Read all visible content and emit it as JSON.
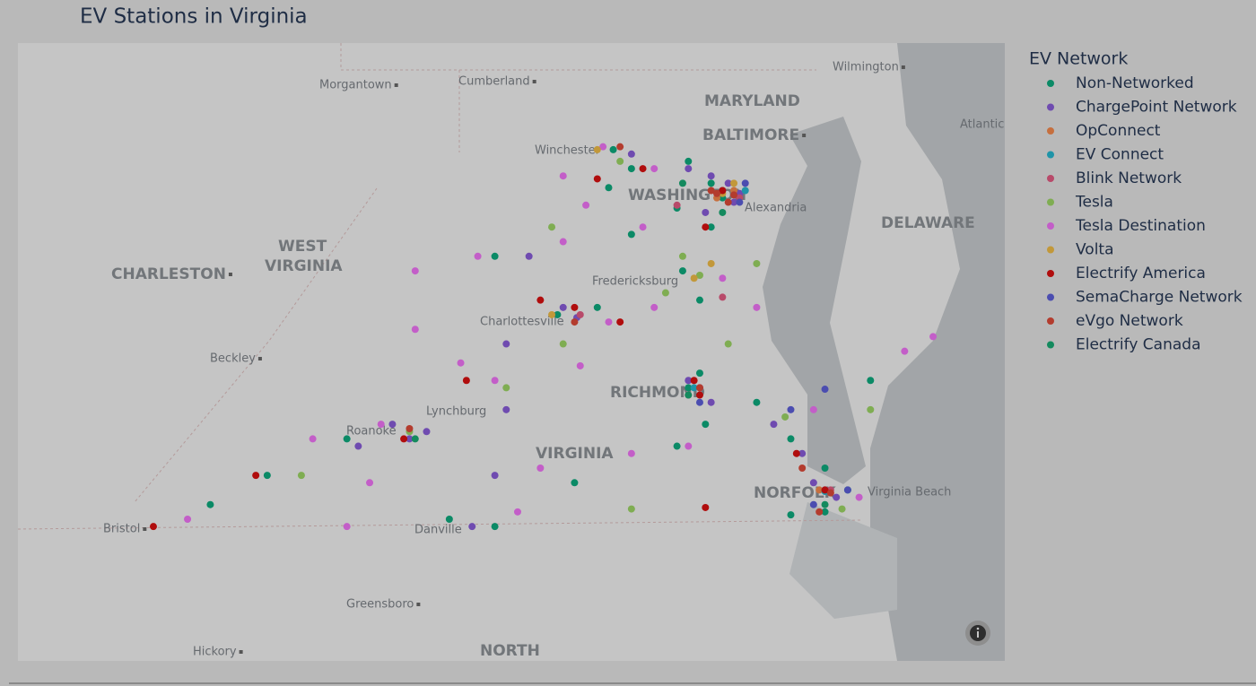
{
  "chart_data": {
    "type": "scatter",
    "title": "EV Stations in Virginia",
    "legend_title": "EV Network",
    "xlim": [
      -83.39,
      -74.72
    ],
    "ylim": [
      35.68,
      39.91
    ],
    "map_labels": [
      "Wilmington",
      "Morgantown",
      "Cumberland",
      "MARYLAND",
      "Atlantic",
      "BALTIMORE",
      "Winchester",
      "WASHINGTON",
      "Alexandria",
      "DELAWARE",
      "WEST",
      "VIRGINIA",
      "CHARLESTON",
      "Fredericksburg",
      "Charlottesville",
      "Beckley",
      "RICHMOND",
      "Lynchburg",
      "Roanoke",
      "VIRGINIA",
      "NORFOLK",
      "Virginia Beach",
      "Bristol",
      "Danville",
      "Greensboro",
      "NORTH",
      "Hickory"
    ],
    "series": [
      {
        "name": "Non-Networked",
        "color": "#0b8a66",
        "x": [
          -78.16,
          -78.0,
          -77.5,
          -77.3,
          -77.2,
          -77.05,
          -77.3,
          -77.6,
          -78.2,
          -78.0,
          -77.55,
          -77.4,
          -78.65,
          -78.3,
          -79.2,
          -77.5,
          -77.4,
          -77.35,
          -76.9,
          -76.6,
          -76.3,
          -76.1,
          -76.3,
          -77.6,
          -80.5,
          -81.7,
          -81.2,
          -79.6,
          -79.2,
          -76.6,
          -78.5,
          -75.9
        ],
        "y": [
          39.18,
          39.05,
          39.1,
          38.95,
          38.85,
          38.85,
          38.65,
          38.78,
          38.92,
          38.6,
          38.35,
          38.15,
          38.05,
          38.1,
          38.45,
          37.55,
          37.65,
          37.3,
          37.45,
          37.2,
          37.0,
          36.85,
          36.7,
          37.15,
          37.2,
          36.75,
          36.95,
          36.65,
          36.6,
          36.68,
          36.9,
          37.6
        ]
      },
      {
        "name": "ChargePoint Network",
        "color": "#6f4bb0",
        "x": [
          -77.05,
          -77.1,
          -77.2,
          -77.3,
          -77.15,
          -77.5,
          -77.35,
          -78.0,
          -78.48,
          -78.9,
          -78.6,
          -79.1,
          -79.8,
          -79.95,
          -80.4,
          -80.1,
          -79.1,
          -77.5,
          -77.4,
          -77.3,
          -76.75,
          -76.5,
          -76.3,
          -76.2,
          -76.4,
          -79.2,
          -79.4
        ],
        "y": [
          38.88,
          38.82,
          38.9,
          39.0,
          38.95,
          39.05,
          38.75,
          39.15,
          38.03,
          38.45,
          38.1,
          37.85,
          37.25,
          37.2,
          37.15,
          37.3,
          37.4,
          37.6,
          37.55,
          37.45,
          37.3,
          37.1,
          36.85,
          36.8,
          36.9,
          36.95,
          36.6
        ]
      },
      {
        "name": "OpConnect",
        "color": "#c66f3e",
        "x": [
          -77.1,
          -77.25,
          -76.35
        ],
        "y": [
          38.9,
          38.85,
          36.85
        ]
      },
      {
        "name": "EV Connect",
        "color": "#1f94a8",
        "x": [
          -77.45,
          -77.0,
          -76.3
        ],
        "y": [
          37.55,
          38.9,
          36.84
        ]
      },
      {
        "name": "Blink Network",
        "color": "#b84a6a",
        "x": [
          -77.05,
          -77.6,
          -78.45,
          -77.5,
          -76.25,
          -77.2
        ],
        "y": [
          38.85,
          38.8,
          38.05,
          37.5,
          36.85,
          38.17
        ]
      },
      {
        "name": "Tesla",
        "color": "#7fad52",
        "x": [
          -78.1,
          -78.7,
          -77.55,
          -77.7,
          -78.6,
          -79.1,
          -80.9,
          -77.15,
          -76.65,
          -76.15,
          -76.9,
          -79.95,
          -75.9,
          -78.0,
          -77.4
        ],
        "y": [
          39.1,
          38.65,
          38.45,
          38.2,
          37.85,
          37.55,
          36.95,
          37.85,
          37.35,
          36.72,
          38.4,
          37.25,
          37.4,
          36.72,
          38.32
        ]
      },
      {
        "name": "Tesla Destination",
        "color": "#c35ec8",
        "x": [
          -78.25,
          -77.8,
          -78.6,
          -78.4,
          -77.9,
          -77.2,
          -78.6,
          -79.35,
          -79.9,
          -79.9,
          -79.5,
          -79.2,
          -80.2,
          -80.8,
          -80.3,
          -80.5,
          -79.0,
          -78.8,
          -78.0,
          -77.8,
          -78.2,
          -77.5,
          -76.9,
          -75.6,
          -75.35,
          -76.4,
          -76.0,
          -78.45,
          -81.9
        ],
        "y": [
          39.2,
          39.05,
          39.0,
          38.8,
          38.65,
          38.3,
          38.55,
          38.45,
          38.35,
          37.95,
          37.72,
          37.6,
          37.3,
          37.2,
          36.9,
          36.6,
          36.7,
          37.0,
          37.1,
          38.1,
          38.0,
          37.15,
          38.1,
          37.8,
          37.9,
          37.4,
          36.8,
          37.7,
          36.65
        ]
      },
      {
        "name": "Volta",
        "color": "#c2983a",
        "x": [
          -77.1,
          -77.2,
          -78.3,
          -77.3,
          -77.45,
          -78.7
        ],
        "y": [
          38.95,
          38.88,
          39.18,
          38.4,
          38.3,
          38.05
        ]
      },
      {
        "name": "Electrify America",
        "color": "#b00d0d",
        "x": [
          -78.3,
          -77.9,
          -77.2,
          -77.35,
          -78.5,
          -78.8,
          -77.4,
          -77.45,
          -79.45,
          -80.0,
          -81.3,
          -82.2,
          -77.35,
          -76.55,
          -76.3,
          -78.1
        ],
        "y": [
          38.98,
          39.05,
          38.9,
          38.65,
          38.1,
          38.15,
          37.5,
          37.6,
          37.6,
          37.2,
          36.95,
          36.6,
          36.73,
          37.1,
          36.85,
          38.0
        ]
      },
      {
        "name": "SemaCharge Network",
        "color": "#4b4db0",
        "x": [
          -77.0,
          -77.05,
          -76.4,
          -76.1,
          -76.6,
          -77.4,
          -76.3
        ],
        "y": [
          38.95,
          38.82,
          36.75,
          36.85,
          37.4,
          37.45,
          37.54
        ]
      },
      {
        "name": "eVgo Network",
        "color": "#b33c2e",
        "x": [
          -77.1,
          -77.25,
          -77.3,
          -77.15,
          -78.1,
          -77.4,
          -79.95,
          -76.5,
          -76.25,
          -78.5,
          -76.35
        ],
        "y": [
          38.87,
          38.88,
          38.9,
          38.82,
          39.2,
          37.55,
          37.27,
          37.0,
          36.83,
          38.0,
          36.7
        ]
      },
      {
        "name": "Electrify Canada",
        "color": "#148a5e",
        "x": [
          -77.2,
          -77.55,
          -77.5,
          -76.3,
          -79.9
        ],
        "y": [
          38.75,
          38.95,
          37.5,
          36.75,
          37.2
        ]
      }
    ]
  }
}
